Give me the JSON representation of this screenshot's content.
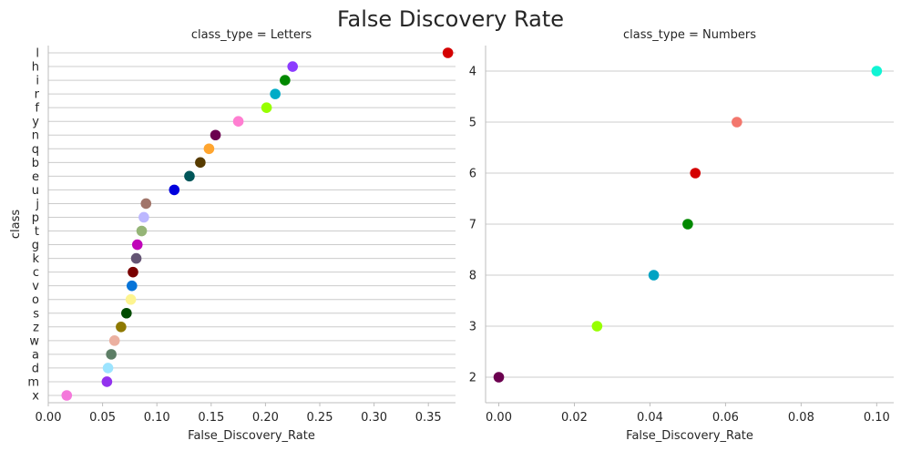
{
  "title": "False Discovery Rate",
  "chart_data": [
    {
      "type": "scatter",
      "subtitle": "class_type = Letters",
      "xlabel": "False_Discovery_Rate",
      "ylabel": "class",
      "xlim": [
        0,
        0.375
      ],
      "xticks": [
        "0.00",
        "0.05",
        "0.10",
        "0.15",
        "0.20",
        "0.25",
        "0.30",
        "0.35"
      ],
      "grid": "horizontal",
      "points": [
        {
          "label": "l",
          "value": 0.368,
          "color": "#d40000"
        },
        {
          "label": "h",
          "value": 0.225,
          "color": "#8c3cff"
        },
        {
          "label": "i",
          "value": 0.218,
          "color": "#028900"
        },
        {
          "label": "r",
          "value": 0.209,
          "color": "#00acc7"
        },
        {
          "label": "f",
          "value": 0.201,
          "color": "#97ff00"
        },
        {
          "label": "y",
          "value": 0.175,
          "color": "#ff7ed1"
        },
        {
          "label": "n",
          "value": 0.154,
          "color": "#6b004f"
        },
        {
          "label": "q",
          "value": 0.148,
          "color": "#ffa52f"
        },
        {
          "label": "b",
          "value": 0.14,
          "color": "#573b00"
        },
        {
          "label": "e",
          "value": 0.13,
          "color": "#005659"
        },
        {
          "label": "u",
          "value": 0.116,
          "color": "#0000dd"
        },
        {
          "label": "j",
          "value": 0.09,
          "color": "#a1756a"
        },
        {
          "label": "p",
          "value": 0.088,
          "color": "#bcb7ff"
        },
        {
          "label": "t",
          "value": 0.086,
          "color": "#95b577"
        },
        {
          "label": "g",
          "value": 0.082,
          "color": "#c004b9"
        },
        {
          "label": "k",
          "value": 0.081,
          "color": "#645474"
        },
        {
          "label": "c",
          "value": 0.078,
          "color": "#790000"
        },
        {
          "label": "v",
          "value": 0.077,
          "color": "#0774d8"
        },
        {
          "label": "o",
          "value": 0.076,
          "color": "#fdf490"
        },
        {
          "label": "s",
          "value": 0.072,
          "color": "#004b00"
        },
        {
          "label": "z",
          "value": 0.067,
          "color": "#8e7900"
        },
        {
          "label": "w",
          "value": 0.061,
          "color": "#ebb0a0"
        },
        {
          "label": "a",
          "value": 0.058,
          "color": "#5d7e66"
        },
        {
          "label": "d",
          "value": 0.055,
          "color": "#9ce4ff"
        },
        {
          "label": "m",
          "value": 0.054,
          "color": "#9232ee"
        },
        {
          "label": "x",
          "value": 0.017,
          "color": "#f478db"
        }
      ]
    },
    {
      "type": "scatter",
      "subtitle": "class_type = Numbers",
      "xlabel": "False_Discovery_Rate",
      "ylabel": "",
      "xlim": [
        -0.0035,
        0.1045
      ],
      "xticks": [
        "0.00",
        "0.02",
        "0.04",
        "0.06",
        "0.08",
        "0.10"
      ],
      "grid": "horizontal",
      "points": [
        {
          "label": "4",
          "value": 0.1,
          "color": "#11f4d4"
        },
        {
          "label": "5",
          "value": 0.063,
          "color": "#f3776d"
        },
        {
          "label": "6",
          "value": 0.052,
          "color": "#d40000"
        },
        {
          "label": "7",
          "value": 0.05,
          "color": "#028900"
        },
        {
          "label": "8",
          "value": 0.041,
          "color": "#00a3c3"
        },
        {
          "label": "3",
          "value": 0.026,
          "color": "#97ff00"
        },
        {
          "label": "2",
          "value": 0.0,
          "color": "#6b004f"
        }
      ]
    }
  ]
}
